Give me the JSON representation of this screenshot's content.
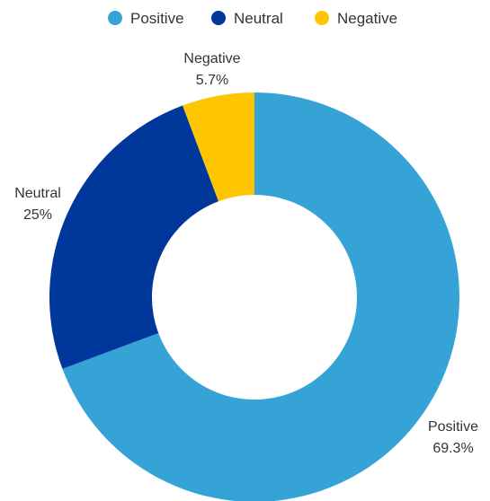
{
  "chart_data": {
    "type": "pie",
    "variant": "donut",
    "title": "",
    "legend_position": "top",
    "categories": [
      "Positive",
      "Neutral",
      "Negative"
    ],
    "values": [
      69.3,
      25,
      5.7
    ],
    "value_labels": [
      "69.3%",
      "25%",
      "5.7%"
    ],
    "colors": [
      "#36a3d6",
      "#00379a",
      "#fdc600"
    ],
    "start_angle_deg": 0,
    "direction": "clockwise"
  }
}
